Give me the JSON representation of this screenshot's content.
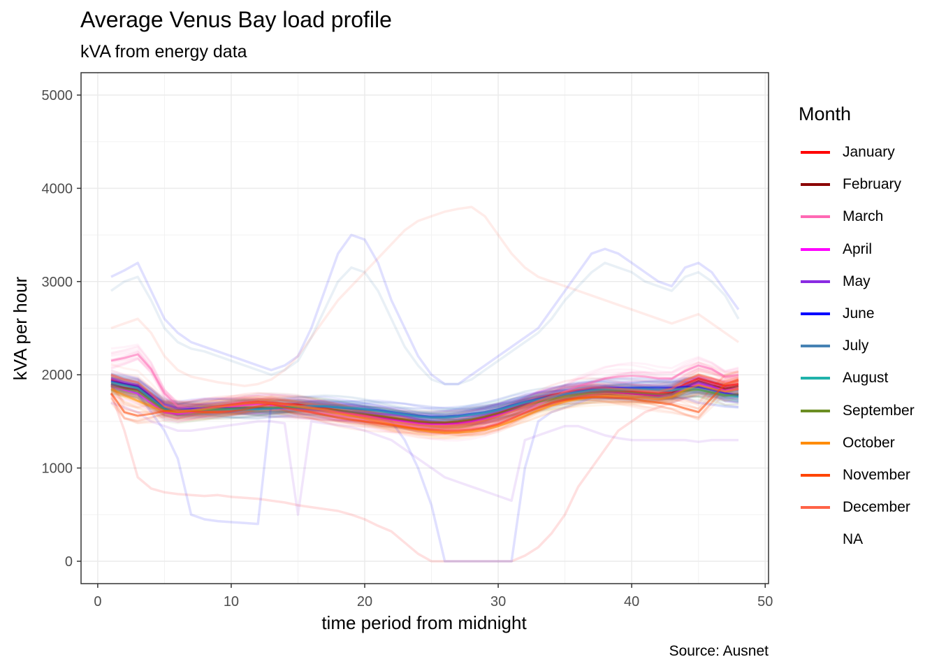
{
  "chart_data": {
    "type": "line",
    "title": "Average Venus Bay load profile",
    "subtitle": "kVA from energy data",
    "caption": "Source: Ausnet",
    "xlabel": "time period from midnight",
    "ylabel": "kVA per hour",
    "xlim": [
      -1.25,
      50.25
    ],
    "ylim": [
      -240,
      5240
    ],
    "x_ticks": [
      0,
      10,
      20,
      30,
      40,
      50
    ],
    "y_ticks": [
      0,
      1000,
      2000,
      3000,
      4000,
      5000
    ],
    "grid": true,
    "legend": {
      "title": "Month",
      "placement": "right",
      "entries": [
        {
          "label": "January",
          "color": "#ff0000"
        },
        {
          "label": "February",
          "color": "#8b0000"
        },
        {
          "label": "March",
          "color": "#ff69b4"
        },
        {
          "label": "April",
          "color": "#ff00ff"
        },
        {
          "label": "May",
          "color": "#8a2be2"
        },
        {
          "label": "June",
          "color": "#0000ff"
        },
        {
          "label": "July",
          "color": "#4682b4"
        },
        {
          "label": "August",
          "color": "#20b2aa"
        },
        {
          "label": "September",
          "color": "#6b8e23"
        },
        {
          "label": "October",
          "color": "#ff8c00"
        },
        {
          "label": "November",
          "color": "#ff4500"
        },
        {
          "label": "December",
          "color": "#ff6347"
        },
        {
          "label": "NA",
          "color": "#ffffff"
        }
      ]
    },
    "x": [
      1,
      2,
      3,
      4,
      5,
      6,
      7,
      8,
      9,
      10,
      11,
      12,
      13,
      14,
      15,
      16,
      17,
      18,
      19,
      20,
      21,
      22,
      23,
      24,
      25,
      26,
      27,
      28,
      29,
      30,
      31,
      32,
      33,
      34,
      35,
      36,
      37,
      38,
      39,
      40,
      41,
      42,
      43,
      44,
      45,
      46,
      47,
      48
    ],
    "series": [
      {
        "name": "January (typical day)",
        "color": "#ff0000",
        "values": [
          1950,
          1900,
          1880,
          1760,
          1640,
          1600,
          1620,
          1640,
          1660,
          1680,
          1700,
          1710,
          1700,
          1690,
          1680,
          1660,
          1640,
          1620,
          1600,
          1580,
          1560,
          1540,
          1520,
          1500,
          1490,
          1490,
          1500,
          1520,
          1550,
          1590,
          1640,
          1690,
          1740,
          1780,
          1810,
          1830,
          1840,
          1840,
          1830,
          1820,
          1810,
          1800,
          1820,
          1900,
          1960,
          1920,
          1880,
          1900
        ]
      },
      {
        "name": "February (typical day)",
        "color": "#8b0000",
        "values": [
          1900,
          1860,
          1840,
          1740,
          1640,
          1610,
          1620,
          1630,
          1650,
          1670,
          1690,
          1700,
          1690,
          1680,
          1670,
          1650,
          1630,
          1610,
          1590,
          1570,
          1550,
          1530,
          1510,
          1490,
          1480,
          1480,
          1490,
          1510,
          1540,
          1580,
          1630,
          1680,
          1720,
          1760,
          1790,
          1810,
          1820,
          1820,
          1810,
          1800,
          1790,
          1780,
          1800,
          1870,
          1930,
          1890,
          1850,
          1880
        ]
      },
      {
        "name": "March (typical day)",
        "color": "#ff69b4",
        "values": [
          2150,
          2180,
          2220,
          2060,
          1800,
          1660,
          1640,
          1640,
          1650,
          1660,
          1670,
          1670,
          1660,
          1640,
          1620,
          1600,
          1580,
          1560,
          1540,
          1520,
          1500,
          1480,
          1460,
          1440,
          1420,
          1410,
          1410,
          1420,
          1440,
          1480,
          1530,
          1600,
          1680,
          1750,
          1820,
          1880,
          1920,
          1960,
          1980,
          1990,
          1980,
          1960,
          1960,
          2040,
          2100,
          2060,
          1980,
          2000
        ]
      },
      {
        "name": "April (typical day)",
        "color": "#ff00ff",
        "values": [
          1880,
          1840,
          1800,
          1700,
          1600,
          1580,
          1600,
          1620,
          1640,
          1660,
          1680,
          1690,
          1680,
          1670,
          1660,
          1640,
          1620,
          1600,
          1580,
          1560,
          1540,
          1520,
          1500,
          1480,
          1470,
          1470,
          1480,
          1500,
          1530,
          1570,
          1620,
          1670,
          1720,
          1760,
          1790,
          1810,
          1820,
          1820,
          1810,
          1800,
          1790,
          1780,
          1790,
          1850,
          1900,
          1870,
          1830,
          1850
        ]
      },
      {
        "name": "May (typical day)",
        "color": "#8a2be2",
        "values": [
          1960,
          1920,
          1890,
          1790,
          1680,
          1640,
          1640,
          1640,
          1640,
          1640,
          1640,
          1640,
          1640,
          1640,
          1640,
          1630,
          1620,
          1610,
          1600,
          1590,
          1580,
          1570,
          1560,
          1550,
          1540,
          1540,
          1550,
          1560,
          1580,
          1610,
          1650,
          1690,
          1730,
          1770,
          1800,
          1830,
          1850,
          1860,
          1860,
          1850,
          1840,
          1830,
          1830,
          1880,
          1920,
          1880,
          1800,
          1780
        ]
      },
      {
        "name": "June (typical day)",
        "color": "#0000ff",
        "values": [
          1930,
          1900,
          1870,
          1760,
          1640,
          1620,
          1630,
          1640,
          1640,
          1640,
          1640,
          1640,
          1640,
          1650,
          1660,
          1660,
          1660,
          1650,
          1640,
          1630,
          1620,
          1600,
          1580,
          1560,
          1550,
          1550,
          1560,
          1580,
          1600,
          1630,
          1670,
          1710,
          1740,
          1770,
          1800,
          1830,
          1850,
          1860,
          1860,
          1860,
          1860,
          1860,
          1860,
          1870,
          1870,
          1840,
          1800,
          1780
        ]
      },
      {
        "name": "July (typical day)",
        "color": "#4682b4",
        "values": [
          1900,
          1880,
          1850,
          1740,
          1630,
          1610,
          1620,
          1630,
          1630,
          1630,
          1630,
          1630,
          1640,
          1650,
          1660,
          1670,
          1670,
          1660,
          1650,
          1640,
          1620,
          1600,
          1580,
          1560,
          1550,
          1550,
          1560,
          1580,
          1600,
          1630,
          1670,
          1710,
          1740,
          1770,
          1800,
          1820,
          1840,
          1850,
          1850,
          1850,
          1850,
          1850,
          1840,
          1860,
          1850,
          1820,
          1790,
          1770
        ]
      },
      {
        "name": "August (typical day)",
        "color": "#20b2aa",
        "values": [
          1920,
          1890,
          1860,
          1750,
          1640,
          1620,
          1620,
          1630,
          1630,
          1630,
          1630,
          1630,
          1640,
          1650,
          1660,
          1660,
          1660,
          1650,
          1640,
          1630,
          1610,
          1590,
          1570,
          1550,
          1540,
          1540,
          1550,
          1570,
          1590,
          1620,
          1660,
          1700,
          1730,
          1760,
          1790,
          1810,
          1830,
          1840,
          1840,
          1840,
          1840,
          1830,
          1830,
          1850,
          1840,
          1810,
          1780,
          1760
        ]
      },
      {
        "name": "September (typical day)",
        "color": "#6b8e23",
        "values": [
          1880,
          1850,
          1820,
          1720,
          1620,
          1600,
          1610,
          1620,
          1630,
          1640,
          1650,
          1650,
          1650,
          1650,
          1650,
          1640,
          1630,
          1620,
          1600,
          1580,
          1560,
          1540,
          1520,
          1500,
          1490,
          1490,
          1500,
          1520,
          1550,
          1590,
          1630,
          1670,
          1710,
          1740,
          1770,
          1790,
          1810,
          1820,
          1820,
          1810,
          1800,
          1790,
          1790,
          1830,
          1840,
          1810,
          1780,
          1790
        ]
      },
      {
        "name": "October (typical day)",
        "color": "#ff8c00",
        "values": [
          1850,
          1780,
          1720,
          1660,
          1610,
          1600,
          1610,
          1630,
          1650,
          1670,
          1690,
          1700,
          1690,
          1680,
          1660,
          1640,
          1620,
          1590,
          1560,
          1530,
          1500,
          1470,
          1440,
          1410,
          1390,
          1380,
          1380,
          1390,
          1410,
          1450,
          1500,
          1560,
          1620,
          1670,
          1710,
          1740,
          1760,
          1770,
          1770,
          1760,
          1750,
          1740,
          1760,
          1840,
          1890,
          1850,
          1820,
          1850
        ]
      },
      {
        "name": "November (typical day)",
        "color": "#ff4500",
        "values": [
          1800,
          1600,
          1560,
          1580,
          1610,
          1620,
          1610,
          1600,
          1600,
          1610,
          1630,
          1660,
          1690,
          1650,
          1620,
          1600,
          1570,
          1540,
          1520,
          1500,
          1480,
          1460,
          1440,
          1420,
          1410,
          1400,
          1400,
          1410,
          1430,
          1470,
          1530,
          1590,
          1650,
          1700,
          1730,
          1750,
          1760,
          1760,
          1750,
          1740,
          1720,
          1700,
          1680,
          1640,
          1600,
          1750,
          1900,
          1950
        ]
      },
      {
        "name": "December (typical day)",
        "color": "#ff6347",
        "values": [
          2000,
          1950,
          1920,
          1800,
          1660,
          1610,
          1620,
          1640,
          1660,
          1680,
          1700,
          1710,
          1700,
          1690,
          1670,
          1650,
          1630,
          1600,
          1580,
          1560,
          1530,
          1500,
          1480,
          1460,
          1450,
          1450,
          1460,
          1480,
          1510,
          1550,
          1600,
          1660,
          1720,
          1770,
          1810,
          1840,
          1860,
          1860,
          1850,
          1840,
          1830,
          1820,
          1850,
          1940,
          2000,
          1960,
          1910,
          1930
        ]
      },
      {
        "name": "June (outlier day)",
        "color": "#0000ff",
        "values": [
          3050,
          3120,
          3200,
          2900,
          2600,
          2450,
          2350,
          2300,
          2250,
          2200,
          2150,
          2100,
          2050,
          2100,
          2200,
          2500,
          2900,
          3300,
          3500,
          3450,
          3200,
          2800,
          2500,
          2200,
          2000,
          1900,
          1900,
          2000,
          2100,
          2200,
          2300,
          2400,
          2500,
          2700,
          2900,
          3100,
          3300,
          3350,
          3300,
          3200,
          3100,
          3000,
          2950,
          3150,
          3200,
          3100,
          2900,
          2700
        ]
      },
      {
        "name": "July (outlier day)",
        "color": "#4682b4",
        "values": [
          2900,
          3000,
          3050,
          2800,
          2500,
          2350,
          2280,
          2250,
          2200,
          2150,
          2100,
          2050,
          2000,
          2050,
          2150,
          2400,
          2700,
          3000,
          3150,
          3100,
          2900,
          2600,
          2300,
          2100,
          1950,
          1900,
          1900,
          1950,
          2050,
          2150,
          2250,
          2350,
          2450,
          2600,
          2800,
          2950,
          3100,
          3200,
          3150,
          3100,
          3000,
          2950,
          2900,
          3050,
          3100,
          3000,
          2850,
          2600
        ]
      },
      {
        "name": "December (outlier day)",
        "color": "#ff6347",
        "values": [
          2500,
          2550,
          2600,
          2450,
          2200,
          2050,
          1980,
          1950,
          1920,
          1900,
          1880,
          1900,
          1950,
          2050,
          2200,
          2400,
          2600,
          2800,
          2950,
          3100,
          3250,
          3400,
          3550,
          3650,
          3700,
          3750,
          3780,
          3800,
          3700,
          3500,
          3300,
          3150,
          3050,
          3000,
          2950,
          2900,
          2850,
          2800,
          2750,
          2700,
          2650,
          2600,
          2550,
          2600,
          2650,
          2550,
          2450,
          2350
        ]
      },
      {
        "name": "January (low-readings day)",
        "color": "#ff0000",
        "values": [
          1800,
          1400,
          900,
          780,
          740,
          720,
          710,
          700,
          710,
          690,
          680,
          670,
          650,
          630,
          600,
          580,
          560,
          540,
          500,
          450,
          380,
          320,
          200,
          80,
          0,
          0,
          0,
          0,
          0,
          0,
          0,
          60,
          150,
          300,
          500,
          800,
          1000,
          1200,
          1400,
          1500,
          1600,
          1650,
          1700,
          1750,
          1800,
          1800,
          1800,
          1800
        ]
      },
      {
        "name": "May (low-readings day)",
        "color": "#8a2be2",
        "values": [
          1700,
          1650,
          1600,
          1500,
          1450,
          1400,
          1400,
          1420,
          1440,
          1460,
          1480,
          1500,
          1500,
          1480,
          500,
          1500,
          1480,
          1460,
          1440,
          1400,
          1350,
          1300,
          1200,
          1100,
          1000,
          900,
          850,
          800,
          750,
          700,
          650,
          1300,
          1350,
          1400,
          1450,
          1450,
          1400,
          1350,
          1320,
          1300,
          1300,
          1300,
          1300,
          1300,
          1280,
          1300,
          1300,
          1300
        ]
      },
      {
        "name": "June (low-readings day)",
        "color": "#0000ff",
        "values": [
          1900,
          1850,
          1800,
          1600,
          1400,
          1100,
          500,
          450,
          430,
          420,
          410,
          400,
          1700,
          1680,
          1660,
          1640,
          1620,
          1600,
          1580,
          1560,
          1540,
          1500,
          1300,
          1000,
          600,
          0,
          0,
          0,
          0,
          0,
          0,
          1000,
          1500,
          1600,
          1650,
          1700,
          1750,
          1750,
          1750,
          1750,
          1750,
          1750,
          1750,
          1750,
          1700,
          1680,
          1660,
          1650
        ]
      }
    ]
  }
}
